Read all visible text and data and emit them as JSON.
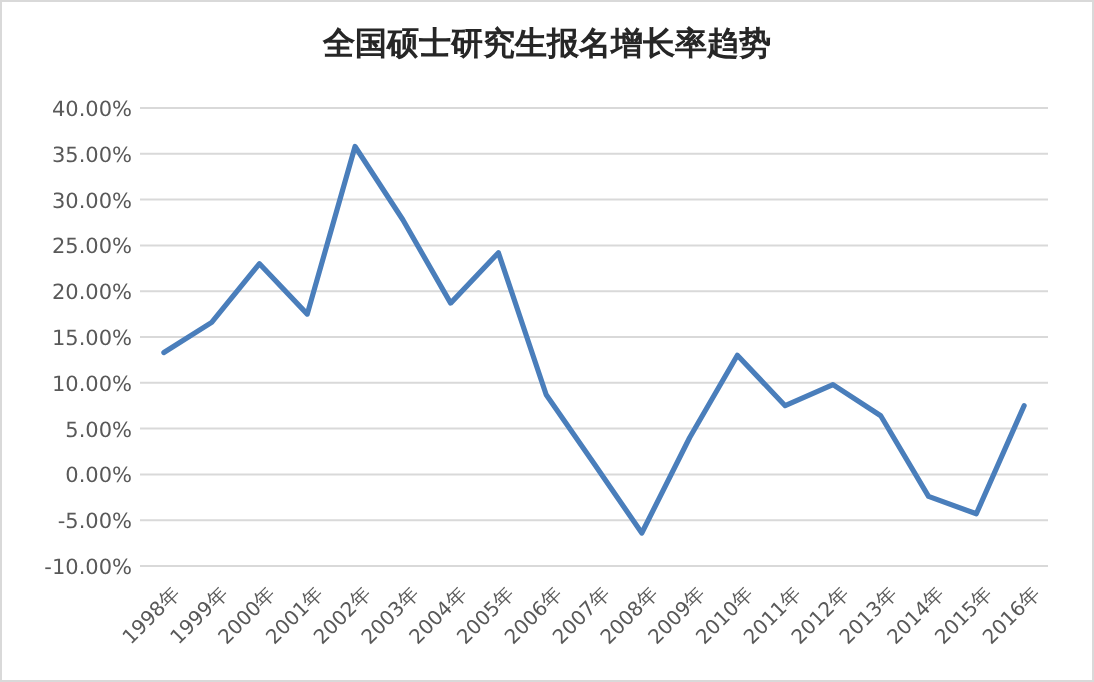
{
  "chart_data": {
    "type": "line",
    "title": "全国硕士研究生报名增长率趋势",
    "categories": [
      "1998年",
      "1999年",
      "2000年",
      "2001年",
      "2002年",
      "2003年",
      "2004年",
      "2005年",
      "2006年",
      "2007年",
      "2008年",
      "2009年",
      "2010年",
      "2011年",
      "2012年",
      "2013年",
      "2014年",
      "2015年",
      "2016年"
    ],
    "series": [
      {
        "color": "#4a7ebb",
        "values": [
          13.3,
          16.6,
          23.0,
          17.5,
          35.8,
          27.8,
          18.7,
          24.2,
          8.7,
          1.2,
          -6.4,
          4.0,
          13.0,
          7.5,
          9.8,
          6.4,
          -2.4,
          -4.3,
          7.5
        ]
      }
    ],
    "ylim": [
      -10,
      40
    ],
    "yticks": [
      {
        "value": -10,
        "label": "-10.00%"
      },
      {
        "value": -5,
        "label": "-5.00%"
      },
      {
        "value": 0,
        "label": "0.00%"
      },
      {
        "value": 5,
        "label": "5.00%"
      },
      {
        "value": 10,
        "label": "10.00%"
      },
      {
        "value": 15,
        "label": "15.00%"
      },
      {
        "value": 20,
        "label": "20.00%"
      },
      {
        "value": 25,
        "label": "25.00%"
      },
      {
        "value": 30,
        "label": "30.00%"
      },
      {
        "value": 35,
        "label": "35.00%"
      },
      {
        "value": 40,
        "label": "40.00%"
      }
    ],
    "grid": "y",
    "marker": "none",
    "line_style": "solid"
  }
}
